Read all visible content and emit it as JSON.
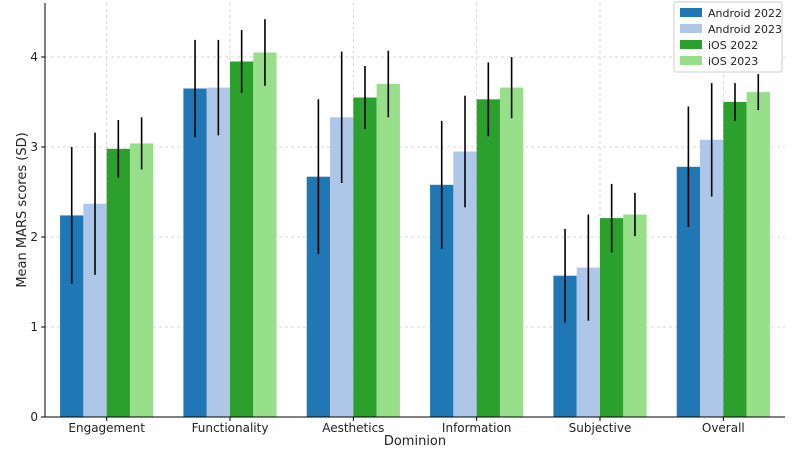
{
  "chart_data": {
    "type": "bar",
    "title": "",
    "xlabel": "Dominion",
    "ylabel": "Mean MARS scores (SD)",
    "ylim": [
      0,
      4.6
    ],
    "yticks": [
      0,
      1,
      2,
      3,
      4
    ],
    "grid": true,
    "legend_position": "top-right",
    "categories": [
      "Engagement",
      "Functionality",
      "Aesthetics",
      "Information",
      "Subjective",
      "Overall"
    ],
    "series": [
      {
        "name": "Android 2022",
        "color": "#1f77b4",
        "values": [
          2.24,
          3.65,
          2.67,
          2.58,
          1.57,
          2.78
        ],
        "sd": [
          0.76,
          0.54,
          0.86,
          0.71,
          0.52,
          0.67
        ]
      },
      {
        "name": "Android 2023",
        "color": "#aec7e8",
        "values": [
          2.37,
          3.66,
          3.33,
          2.95,
          1.66,
          3.08
        ],
        "sd": [
          0.79,
          0.53,
          0.73,
          0.62,
          0.59,
          0.63
        ]
      },
      {
        "name": "iOS 2022",
        "color": "#2ca02c",
        "values": [
          2.98,
          3.95,
          3.55,
          3.53,
          2.21,
          3.5
        ],
        "sd": [
          0.32,
          0.35,
          0.35,
          0.41,
          0.38,
          0.21
        ]
      },
      {
        "name": "iOS 2023",
        "color": "#98df8a",
        "values": [
          3.04,
          4.05,
          3.7,
          3.66,
          2.25,
          3.61
        ],
        "sd": [
          0.29,
          0.37,
          0.37,
          0.34,
          0.24,
          0.2
        ]
      }
    ]
  }
}
